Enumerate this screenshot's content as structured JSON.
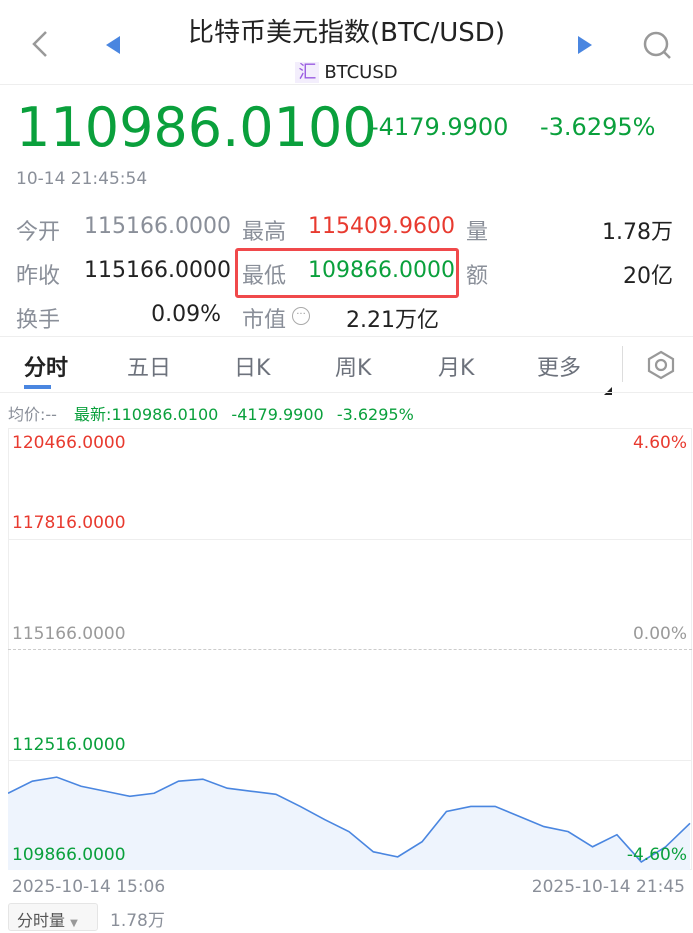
{
  "header": {
    "title": "比特币美元指数(BTC/USD)",
    "badge": "汇",
    "symbol": "BTCUSD",
    "icons": [
      "back-icon",
      "prev-triangle-icon",
      "next-triangle-icon",
      "search-icon"
    ]
  },
  "quote": {
    "price": "110986.0100",
    "change": "-4179.9900",
    "change_pct": "-3.6295%",
    "time": "10-14 21:45:54",
    "down_color": "#0aa03c",
    "up_color": "#e83a2f"
  },
  "stats": {
    "open_label": "今开",
    "open": "115166.0000",
    "high_label": "最高",
    "high": "115409.9600",
    "volume_label": "量",
    "volume": "1.78万",
    "prev_label": "昨收",
    "prev": "115166.0000",
    "low_label": "最低",
    "low": "109866.0000",
    "amount_label": "额",
    "amount": "20亿",
    "turnover_label": "换手",
    "turnover": "0.09%",
    "mcap_label": "市值",
    "mcap": "2.21万亿"
  },
  "tabs": [
    {
      "label": "分时",
      "active": true
    },
    {
      "label": "五日"
    },
    {
      "label": "日K"
    },
    {
      "label": "周K"
    },
    {
      "label": "月K"
    },
    {
      "label": "更多"
    }
  ],
  "info": {
    "avg": "均价:--",
    "latest": "最新:110986.0100",
    "change": "-4179.9900",
    "change_pct": "-3.6295%"
  },
  "chart_data": {
    "type": "line",
    "y_ticks": [
      {
        "label": "120466.0000",
        "pct": "4.60%",
        "color": "#e83a2f"
      },
      {
        "label": "117816.0000",
        "color": "#e83a2f"
      },
      {
        "label": "115166.0000",
        "pct": "0.00%",
        "color": "#9a9a9a"
      },
      {
        "label": "112516.0000",
        "color": "#0aa03c"
      },
      {
        "label": "109866.0000",
        "pct": "-4.60%",
        "color": "#0aa03c"
      }
    ],
    "ylim": [
      109866,
      120466
    ],
    "x_start": "2025-10-14 15:06",
    "x_end": "2025-10-14 21:45",
    "values": [
      111706,
      111996,
      112093,
      111875,
      111754,
      111633,
      111706,
      111996,
      112044,
      111827,
      111754,
      111681,
      111391,
      111076,
      110786,
      110302,
      110181,
      110544,
      111270,
      111391,
      111391,
      111149,
      110907,
      110786,
      110423,
      110713,
      110060,
      110423,
      110986
    ],
    "line_color": "#4a86e0"
  },
  "volume_bar": {
    "selector": "分时量",
    "value": "1.78万"
  }
}
